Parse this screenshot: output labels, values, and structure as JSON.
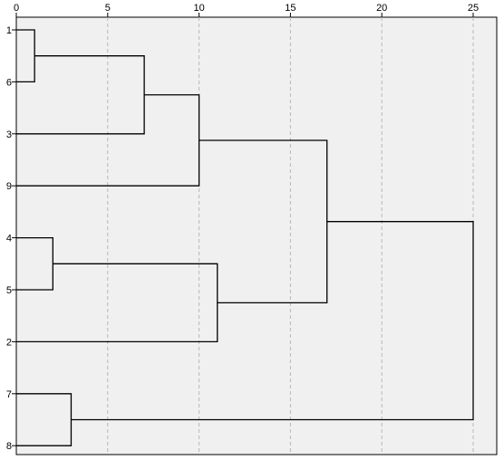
{
  "chart_data": {
    "type": "dendrogram",
    "orientation": "horizontal",
    "x_ticks": [
      0,
      5,
      10,
      15,
      20,
      25
    ],
    "xlim": [
      0,
      25
    ],
    "leaves": [
      "1",
      "6",
      "3",
      "9",
      "4",
      "5",
      "2",
      "7",
      "8"
    ],
    "merges": [
      {
        "members": [
          "1",
          "6"
        ],
        "distance": 1
      },
      {
        "members": [
          "1-6",
          "3"
        ],
        "distance": 7
      },
      {
        "members": [
          "1-6-3",
          "9"
        ],
        "distance": 10
      },
      {
        "members": [
          "4",
          "5"
        ],
        "distance": 2
      },
      {
        "members": [
          "4-5",
          "2"
        ],
        "distance": 11
      },
      {
        "members": [
          "1-6-3-9",
          "4-5-2"
        ],
        "distance": 17
      },
      {
        "members": [
          "7",
          "8"
        ],
        "distance": 3
      },
      {
        "members": [
          "1-6-3-9-4-5-2",
          "7-8"
        ],
        "distance": 25
      }
    ],
    "grid": "vertical dashed at ticks",
    "background_color": "#f0f0f0"
  }
}
